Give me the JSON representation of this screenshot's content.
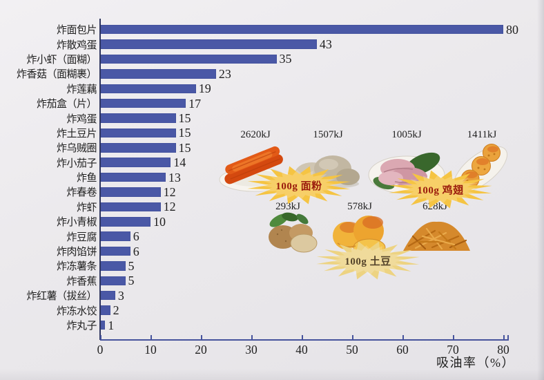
{
  "page": {
    "background": "#ebe9ec",
    "bar_color": "#4a58a6",
    "axis_color": "#46539c"
  },
  "chart_data": {
    "type": "bar",
    "orientation": "horizontal",
    "title": "",
    "xlabel": "吸油率（%）",
    "ylabel": "",
    "categories": [
      "炸面包片",
      "炸散鸡蛋",
      "炸小虾（面糊）",
      "炸香菇（面糊裹）",
      "炸莲藕",
      "炸茄盒（片）",
      "炸鸡蛋",
      "炸土豆片",
      "炸乌贼圈",
      "炸小茄子",
      "炸鱼",
      "炸春卷",
      "炸虾",
      "炸小青椒",
      "炸豆腐",
      "炸肉馅饼",
      "炸冻薯条",
      "炸香蕉",
      "炸红薯（拔丝）",
      "炸冻水饺",
      "炸丸子"
    ],
    "values": [
      80,
      43,
      35,
      23,
      19,
      17,
      15,
      15,
      15,
      14,
      13,
      12,
      12,
      10,
      6,
      6,
      5,
      5,
      3,
      2,
      1
    ],
    "xticks": [
      "0",
      "10",
      "20",
      "30",
      "40",
      "50",
      "60",
      "70",
      "80"
    ],
    "xlim": [
      0,
      80
    ],
    "grid": false,
    "legend": null
  },
  "inset": {
    "groups": [
      {
        "badge": {
          "label": "100g 面粉",
          "fill": "#f5c443",
          "text_color": "#9a1b0d"
        },
        "items": [
          {
            "name": "fried-dough-sticks",
            "energy": "2620kJ"
          },
          {
            "name": "steamed-buns",
            "energy": "1507kJ"
          }
        ]
      },
      {
        "badge": {
          "label": "100g 鸡翅",
          "fill": "#f5c443",
          "text_color": "#9a1b0d"
        },
        "items": [
          {
            "name": "boiled-chicken-meat",
            "energy": "1005kJ"
          },
          {
            "name": "fried-chicken-wings",
            "energy": "1411kJ"
          }
        ]
      },
      {
        "badge": {
          "label": "100g 土豆",
          "fill": "#edd382",
          "text_color": "#54432a"
        },
        "items": [
          {
            "name": "raw-potatoes",
            "energy": "293kJ"
          },
          {
            "name": "potato-chips",
            "energy": "578kJ"
          },
          {
            "name": "fried-potato-shreds",
            "energy": "628kJ"
          }
        ]
      }
    ]
  }
}
